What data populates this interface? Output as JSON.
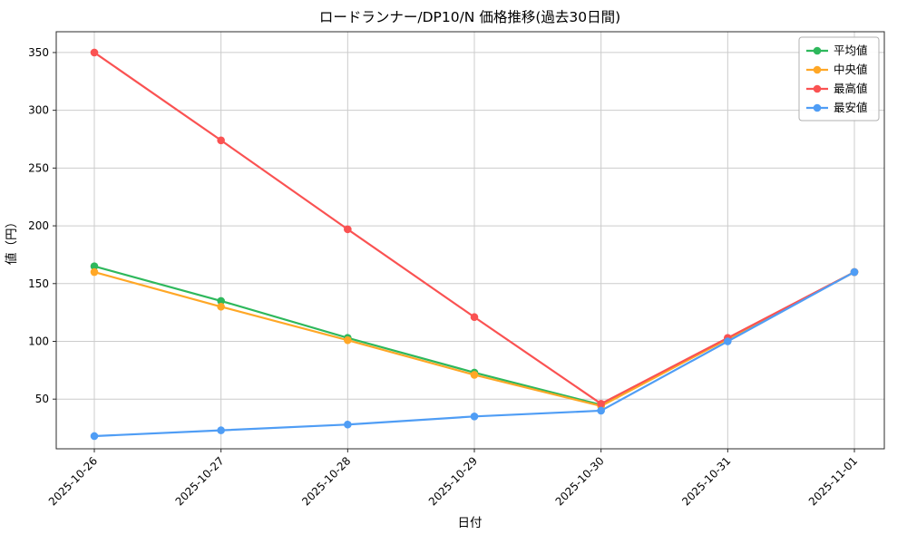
{
  "chart_data": {
    "type": "line",
    "title": "ロードランナー/DP10/N 価格推移(過去30日間)",
    "xlabel": "日付",
    "ylabel": "値（円）",
    "categories": [
      "2025-10-26",
      "2025-10-27",
      "2025-10-28",
      "2025-10-29",
      "2025-10-30",
      "2025-10-31",
      "2025-11-01"
    ],
    "yticks": [
      50,
      100,
      150,
      200,
      250,
      300,
      350
    ],
    "ylim": [
      7,
      368
    ],
    "grid": true,
    "legend_position": "upper right",
    "series": [
      {
        "key": "average",
        "name": "平均値",
        "color": "#2eb85c",
        "values": [
          165,
          135,
          103,
          73,
          45,
          102,
          160
        ]
      },
      {
        "key": "median",
        "name": "中央値",
        "color": "#ffa726",
        "values": [
          160,
          130,
          101,
          71,
          44,
          102,
          160
        ]
      },
      {
        "key": "max",
        "name": "最高値",
        "color": "#fa5252",
        "values": [
          350,
          274,
          197,
          121,
          46,
          103,
          160
        ]
      },
      {
        "key": "min",
        "name": "最安値",
        "color": "#4f9df5",
        "values": [
          18,
          23,
          28,
          35,
          40,
          100,
          160
        ]
      }
    ]
  }
}
